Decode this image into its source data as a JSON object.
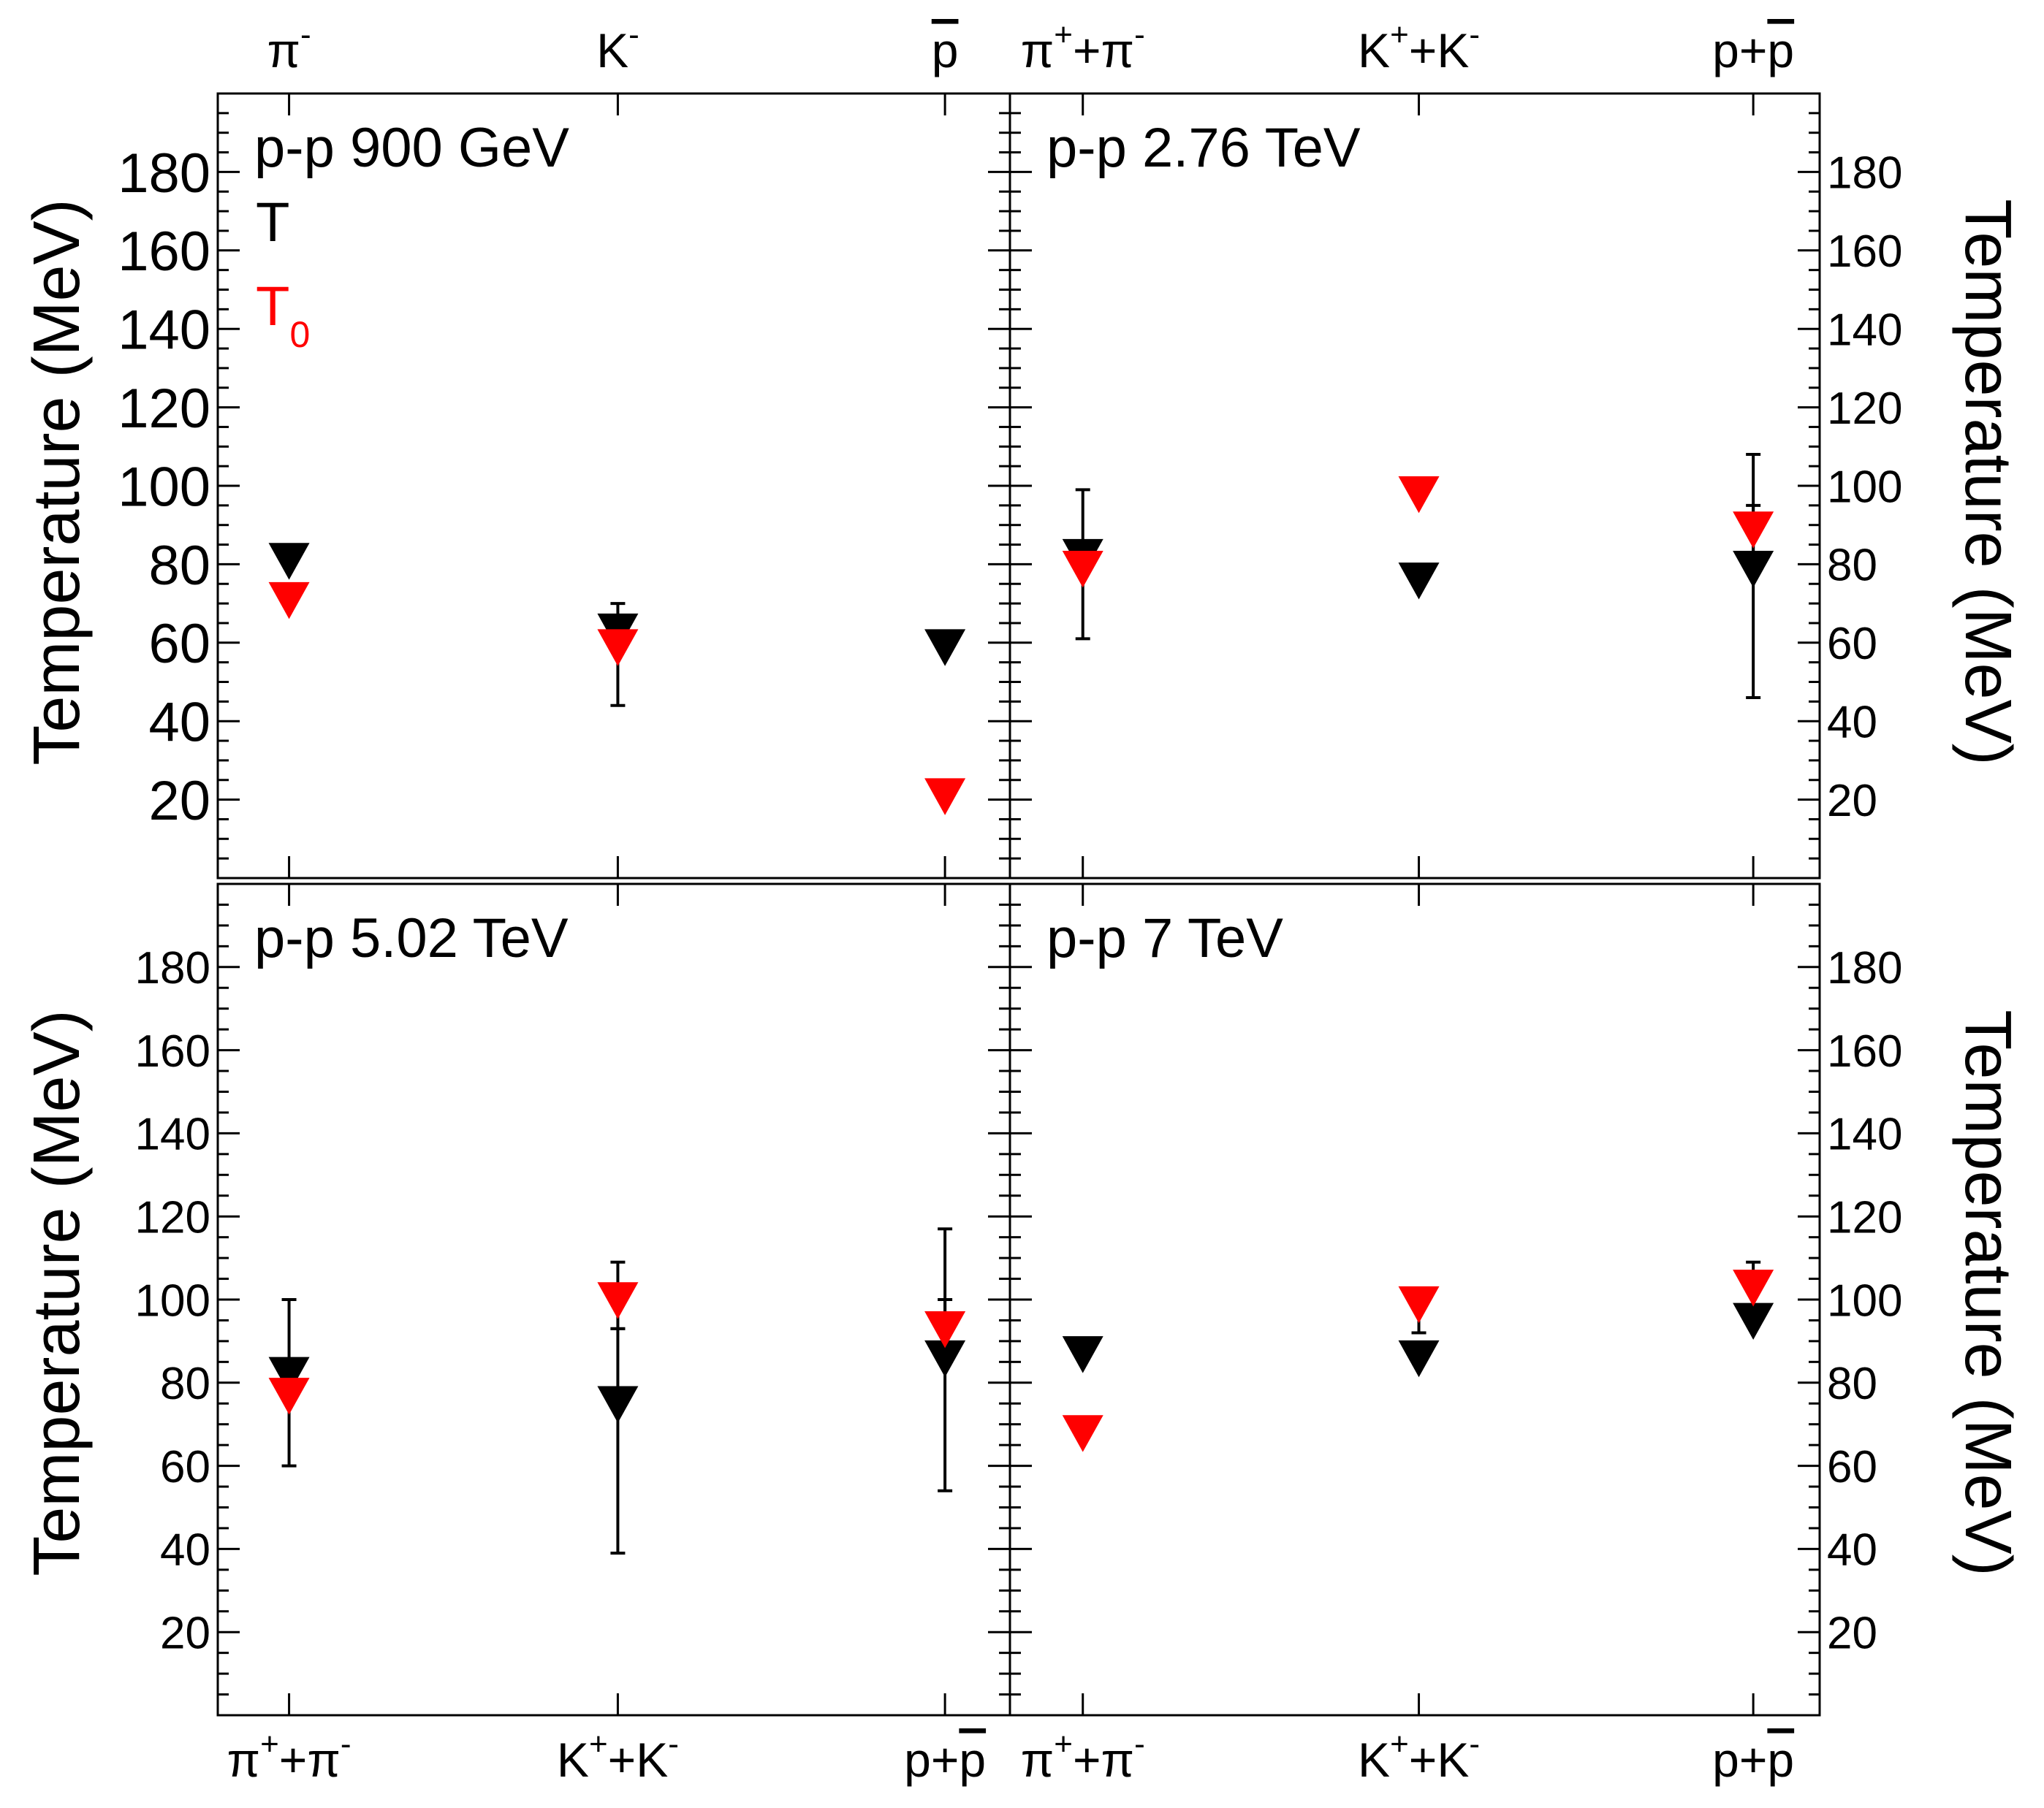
{
  "colors": {
    "T": "#000000",
    "T0": "#ff0000",
    "axis": "#000000"
  },
  "y_axis_label": "Temperature (MeV)",
  "y_ticks": [
    "20",
    "40",
    "60",
    "80",
    "100",
    "120",
    "140",
    "160",
    "180"
  ],
  "legend": {
    "T_label": "T",
    "T0_label": "T",
    "T0_sub": "0"
  },
  "chart_data": [
    {
      "type": "scatter",
      "title": "p-p 900 GeV",
      "categories": [
        {
          "base": "π",
          "sup": "-",
          "bar": false
        },
        {
          "base": "K",
          "sup": "-",
          "bar": false
        },
        {
          "base": "p",
          "sup": "",
          "bar": true
        }
      ],
      "ylim": [
        0,
        200
      ],
      "ylabel": "Temperature (MeV)",
      "series": [
        {
          "name": "T",
          "values": [
            81,
            63,
            59
          ],
          "errors": [
            null,
            [
              63,
              70
            ],
            null
          ]
        },
        {
          "name": "T0",
          "values": [
            71,
            59,
            21
          ],
          "errors": [
            null,
            [
              44,
              63
            ],
            null
          ]
        }
      ]
    },
    {
      "type": "scatter",
      "title": "p-p 2.76 TeV",
      "categories": [
        {
          "base": "π",
          "sup": "+",
          "mid": "+π",
          "sup2": "-",
          "bar": false
        },
        {
          "base": "K",
          "sup": "+",
          "mid": "+K",
          "sup2": "-",
          "bar": false
        },
        {
          "base": "p+",
          "sup": "",
          "mid": "p",
          "sup2": "",
          "bar": true
        }
      ],
      "ylim": [
        0,
        200
      ],
      "ylabel": "Temperature (MeV)",
      "series": [
        {
          "name": "T",
          "values": [
            82,
            76,
            79
          ],
          "errors": [
            [
              61,
              99
            ],
            null,
            [
              46,
              95
            ]
          ]
        },
        {
          "name": "T0",
          "values": [
            79,
            98,
            89
          ],
          "errors": [
            null,
            null,
            [
              78,
              108
            ]
          ]
        }
      ]
    },
    {
      "type": "scatter",
      "title": "p-p 5.02 TeV",
      "categories": [
        {
          "base": "π",
          "sup": "+",
          "mid": "+π",
          "sup2": "-",
          "bar": false
        },
        {
          "base": "K",
          "sup": "+",
          "mid": "+K",
          "sup2": "-",
          "bar": false
        },
        {
          "base": "p+",
          "sup": "",
          "mid": "p",
          "sup2": "",
          "bar": true
        }
      ],
      "ylim": [
        0,
        200
      ],
      "ylabel": "Temperature (MeV)",
      "series": [
        {
          "name": "T",
          "values": [
            82,
            75,
            86
          ],
          "errors": [
            [
              60,
              100
            ],
            [
              39,
              93
            ],
            [
              54,
              117
            ]
          ]
        },
        {
          "name": "T0",
          "values": [
            77,
            100,
            93
          ],
          "errors": [
            null,
            [
              93,
              109
            ],
            [
              86,
              100
            ]
          ]
        }
      ]
    },
    {
      "type": "scatter",
      "title": "p-p 7 TeV",
      "categories": [
        {
          "base": "π",
          "sup": "+",
          "mid": "+π",
          "sup2": "-",
          "bar": false
        },
        {
          "base": "K",
          "sup": "+",
          "mid": "+K",
          "sup2": "-",
          "bar": false
        },
        {
          "base": "p+",
          "sup": "",
          "mid": "p",
          "sup2": "",
          "bar": true
        }
      ],
      "ylim": [
        0,
        200
      ],
      "ylabel": "Temperature (MeV)",
      "series": [
        {
          "name": "T",
          "values": [
            87,
            86,
            95
          ],
          "errors": [
            null,
            [
              92,
              102
            ],
            null
          ]
        },
        {
          "name": "T0",
          "values": [
            68,
            99,
            103
          ],
          "errors": [
            null,
            null,
            [
              98,
              109
            ]
          ]
        }
      ]
    }
  ]
}
